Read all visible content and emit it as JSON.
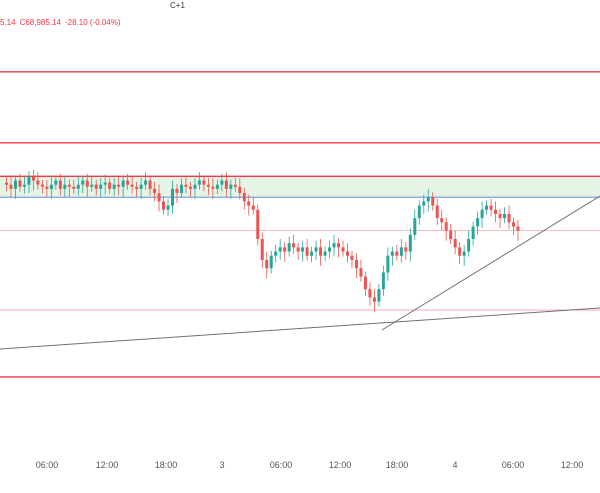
{
  "header": {
    "timezone_fragment": "C+1",
    "ohlc_fragment": "5.14",
    "close_label": "C",
    "close_value": "68,985.14",
    "change": "-28.10 (-0.04%)"
  },
  "colors": {
    "up": "#26a69a",
    "down": "#ef5350",
    "level": "#f23645",
    "zone_fill": "#e6f4e6",
    "zone_bottom": "#4a7bd6",
    "trend": "#707070"
  },
  "chart_data": {
    "type": "candlestick",
    "title": "",
    "xlabel": "",
    "ylabel": "",
    "x_ticks": [
      "06:00",
      "12:00",
      "18:00",
      "3",
      "06:00",
      "12:00",
      "18:00",
      "4",
      "06:00",
      "12:00"
    ],
    "y_range_units": "price (not printed)",
    "horizontal_levels": [
      {
        "name": "resistance-top",
        "level": 0.1
      },
      {
        "name": "resistance-2",
        "level": 0.27
      },
      {
        "name": "zone-top",
        "level": 0.35
      },
      {
        "name": "zone-bottom",
        "level": 0.4
      },
      {
        "name": "mid-level",
        "level": 0.48
      },
      {
        "name": "support-level",
        "level": 0.67
      },
      {
        "name": "lower-level",
        "level": 0.83
      }
    ],
    "close_series": [
      0.365,
      0.37,
      0.38,
      0.36,
      0.375,
      0.37,
      0.35,
      0.36,
      0.37,
      0.375,
      0.38,
      0.37,
      0.36,
      0.38,
      0.37,
      0.375,
      0.38,
      0.37,
      0.36,
      0.375,
      0.37,
      0.38,
      0.37,
      0.365,
      0.38,
      0.37,
      0.375,
      0.36,
      0.37,
      0.375,
      0.38,
      0.37,
      0.36,
      0.38,
      0.39,
      0.41,
      0.43,
      0.42,
      0.38,
      0.39,
      0.37,
      0.375,
      0.38,
      0.37,
      0.36,
      0.37,
      0.375,
      0.38,
      0.37,
      0.36,
      0.38,
      0.37,
      0.375,
      0.39,
      0.41,
      0.42,
      0.43,
      0.5,
      0.55,
      0.57,
      0.54,
      0.53,
      0.52,
      0.53,
      0.51,
      0.52,
      0.53,
      0.52,
      0.54,
      0.53,
      0.52,
      0.54,
      0.53,
      0.52,
      0.51,
      0.52,
      0.53,
      0.54,
      0.55,
      0.57,
      0.59,
      0.62,
      0.64,
      0.65,
      0.62,
      0.58,
      0.54,
      0.53,
      0.54,
      0.52,
      0.53,
      0.49,
      0.45,
      0.42,
      0.41,
      0.4,
      0.42,
      0.45,
      0.46,
      0.48,
      0.5,
      0.52,
      0.54,
      0.53,
      0.5,
      0.47,
      0.45,
      0.43,
      0.42,
      0.43,
      0.44,
      0.45,
      0.44,
      0.46,
      0.47,
      0.48
    ]
  }
}
